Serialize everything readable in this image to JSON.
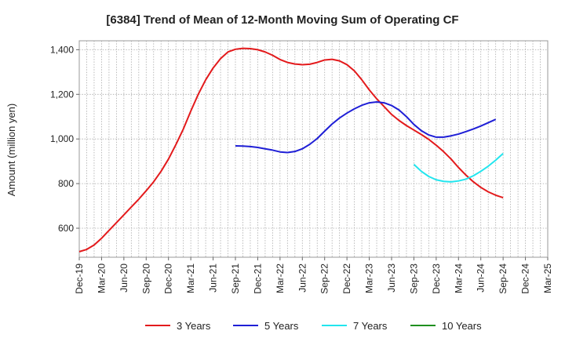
{
  "chart_data": {
    "type": "line",
    "title": "[6384]  Trend of Mean of 12-Month Moving Sum of Operating CF",
    "xlabel": "",
    "ylabel": "Amount (million yen)",
    "ylim": [
      470,
      1440
    ],
    "yticks": [
      600,
      800,
      1000,
      1200,
      1400
    ],
    "ytick_labels": [
      "600",
      "800",
      "1,000",
      "1,200",
      "1,400"
    ],
    "x_start": "2019-12",
    "x_end": "2025-03",
    "xtick_labels": [
      "Dec-19",
      "Mar-20",
      "Jun-20",
      "Sep-20",
      "Dec-20",
      "Mar-21",
      "Jun-21",
      "Sep-21",
      "Dec-21",
      "Mar-22",
      "Jun-22",
      "Sep-22",
      "Dec-22",
      "Mar-23",
      "Jun-23",
      "Sep-23",
      "Dec-23",
      "Mar-24",
      "Jun-24",
      "Sep-24",
      "Dec-24",
      "Mar-25"
    ],
    "grid": true,
    "legend_position": "bottom",
    "series": [
      {
        "name": "3 Years",
        "color": "#e31a1c",
        "points": [
          [
            "2019-12",
            495
          ],
          [
            "2020-01",
            505
          ],
          [
            "2020-02",
            525
          ],
          [
            "2020-03",
            555
          ],
          [
            "2020-04",
            590
          ],
          [
            "2020-05",
            625
          ],
          [
            "2020-06",
            660
          ],
          [
            "2020-07",
            695
          ],
          [
            "2020-08",
            730
          ],
          [
            "2020-09",
            768
          ],
          [
            "2020-10",
            808
          ],
          [
            "2020-11",
            855
          ],
          [
            "2020-12",
            910
          ],
          [
            "2021-01",
            975
          ],
          [
            "2021-02",
            1045
          ],
          [
            "2021-03",
            1125
          ],
          [
            "2021-04",
            1200
          ],
          [
            "2021-05",
            1265
          ],
          [
            "2021-06",
            1318
          ],
          [
            "2021-07",
            1360
          ],
          [
            "2021-08",
            1390
          ],
          [
            "2021-09",
            1402
          ],
          [
            "2021-10",
            1406
          ],
          [
            "2021-11",
            1405
          ],
          [
            "2021-12",
            1400
          ],
          [
            "2022-01",
            1390
          ],
          [
            "2022-02",
            1375
          ],
          [
            "2022-03",
            1356
          ],
          [
            "2022-04",
            1343
          ],
          [
            "2022-05",
            1336
          ],
          [
            "2022-06",
            1333
          ],
          [
            "2022-07",
            1335
          ],
          [
            "2022-08",
            1343
          ],
          [
            "2022-09",
            1354
          ],
          [
            "2022-10",
            1357
          ],
          [
            "2022-11",
            1350
          ],
          [
            "2022-12",
            1333
          ],
          [
            "2023-01",
            1305
          ],
          [
            "2023-02",
            1265
          ],
          [
            "2023-03",
            1220
          ],
          [
            "2023-04",
            1180
          ],
          [
            "2023-05",
            1145
          ],
          [
            "2023-06",
            1110
          ],
          [
            "2023-07",
            1083
          ],
          [
            "2023-08",
            1060
          ],
          [
            "2023-09",
            1040
          ],
          [
            "2023-10",
            1020
          ],
          [
            "2023-11",
            998
          ],
          [
            "2023-12",
            972
          ],
          [
            "2024-01",
            943
          ],
          [
            "2024-02",
            910
          ],
          [
            "2024-03",
            872
          ],
          [
            "2024-04",
            838
          ],
          [
            "2024-05",
            808
          ],
          [
            "2024-06",
            783
          ],
          [
            "2024-07",
            763
          ],
          [
            "2024-08",
            748
          ],
          [
            "2024-09",
            737
          ]
        ]
      },
      {
        "name": "5 Years",
        "color": "#1f1fd6",
        "points": [
          [
            "2021-09",
            969
          ],
          [
            "2021-10",
            968
          ],
          [
            "2021-11",
            966
          ],
          [
            "2021-12",
            962
          ],
          [
            "2022-01",
            956
          ],
          [
            "2022-02",
            950
          ],
          [
            "2022-03",
            942
          ],
          [
            "2022-04",
            939
          ],
          [
            "2022-05",
            944
          ],
          [
            "2022-06",
            956
          ],
          [
            "2022-07",
            976
          ],
          [
            "2022-08",
            1002
          ],
          [
            "2022-09",
            1035
          ],
          [
            "2022-10",
            1067
          ],
          [
            "2022-11",
            1094
          ],
          [
            "2022-12",
            1116
          ],
          [
            "2023-01",
            1135
          ],
          [
            "2023-02",
            1151
          ],
          [
            "2023-03",
            1162
          ],
          [
            "2023-04",
            1166
          ],
          [
            "2023-05",
            1162
          ],
          [
            "2023-06",
            1150
          ],
          [
            "2023-07",
            1130
          ],
          [
            "2023-08",
            1100
          ],
          [
            "2023-09",
            1065
          ],
          [
            "2023-10",
            1037
          ],
          [
            "2023-11",
            1018
          ],
          [
            "2023-12",
            1008
          ],
          [
            "2024-01",
            1008
          ],
          [
            "2024-02",
            1014
          ],
          [
            "2024-03",
            1022
          ],
          [
            "2024-04",
            1033
          ],
          [
            "2024-05",
            1045
          ],
          [
            "2024-06",
            1058
          ],
          [
            "2024-07",
            1073
          ],
          [
            "2024-08",
            1088
          ]
        ]
      },
      {
        "name": "7 Years",
        "color": "#22e5ee",
        "points": [
          [
            "2023-09",
            886
          ],
          [
            "2023-10",
            855
          ],
          [
            "2023-11",
            832
          ],
          [
            "2023-12",
            817
          ],
          [
            "2024-01",
            810
          ],
          [
            "2024-02",
            808
          ],
          [
            "2024-03",
            812
          ],
          [
            "2024-04",
            820
          ],
          [
            "2024-05",
            835
          ],
          [
            "2024-06",
            855
          ],
          [
            "2024-07",
            878
          ],
          [
            "2024-08",
            905
          ],
          [
            "2024-09",
            935
          ]
        ]
      },
      {
        "name": "10 Years",
        "color": "#1f8f1f",
        "points": []
      }
    ]
  }
}
